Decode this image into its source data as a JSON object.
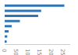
{
  "chart_data": {
    "type": "bar",
    "orientation": "horizontal",
    "categories": [
      null,
      null,
      null,
      null,
      null,
      null,
      null,
      null
    ],
    "values": [
      2550,
      1560,
      1430,
      650,
      300,
      170,
      110,
      85
    ],
    "color": "#2e75b6",
    "xlim": [
      0,
      2800
    ],
    "xticks": [
      0,
      500,
      1000,
      1500,
      2000,
      2500
    ],
    "grid": false,
    "tick_labels": "x"
  }
}
